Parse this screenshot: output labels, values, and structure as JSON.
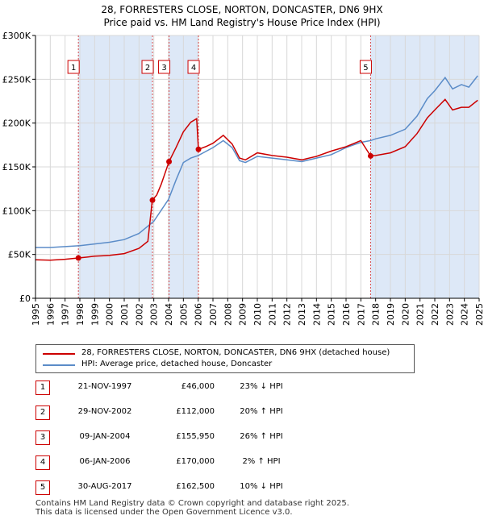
{
  "title_line1": "28, FORRESTERS CLOSE, NORTON, DONCASTER, DN6 9HX",
  "title_line2": "Price paid vs. HM Land Registry's House Price Index (HPI)",
  "colors": {
    "property": "#cc0000",
    "hpi": "#5b8cc8",
    "shade": "#dde8f7",
    "marker": "#cc0000"
  },
  "chart_data": {
    "type": "line",
    "title": "Price paid vs. HM Land Registry's House Price Index (HPI)",
    "xlabel": "",
    "ylabel": "",
    "xlim": [
      1995,
      2025
    ],
    "ylim": [
      0,
      300000
    ],
    "y_ticks": [
      0,
      50000,
      100000,
      150000,
      200000,
      250000,
      300000
    ],
    "y_tick_labels": [
      "£0",
      "£50K",
      "£100K",
      "£150K",
      "£200K",
      "£250K",
      "£300K"
    ],
    "x_ticks": [
      1995,
      1996,
      1997,
      1998,
      1999,
      2000,
      2001,
      2002,
      2003,
      2004,
      2005,
      2006,
      2007,
      2008,
      2009,
      2010,
      2011,
      2012,
      2013,
      2014,
      2015,
      2016,
      2017,
      2018,
      2019,
      2020,
      2021,
      2022,
      2023,
      2024,
      2025
    ],
    "grid": true,
    "legend_position": "below",
    "series": [
      {
        "name": "28, FORRESTERS CLOSE, NORTON, DONCASTER, DN6 9HX (detached house)",
        "points": [
          [
            1995.0,
            44000
          ],
          [
            1996.0,
            43500
          ],
          [
            1997.0,
            44500
          ],
          [
            1997.9,
            46000
          ],
          [
            1998.5,
            47000
          ],
          [
            1999.0,
            48000
          ],
          [
            2000.0,
            49000
          ],
          [
            2001.0,
            51000
          ],
          [
            2002.0,
            57000
          ],
          [
            2002.6,
            65000
          ],
          [
            2002.9,
            112000
          ],
          [
            2003.2,
            118000
          ],
          [
            2003.5,
            130000
          ],
          [
            2004.03,
            155950
          ],
          [
            2004.5,
            172000
          ],
          [
            2005.0,
            190000
          ],
          [
            2005.5,
            201000
          ],
          [
            2005.9,
            205000
          ],
          [
            2006.02,
            170000
          ],
          [
            2006.5,
            173000
          ],
          [
            2007.0,
            177000
          ],
          [
            2007.7,
            186000
          ],
          [
            2008.3,
            176000
          ],
          [
            2008.8,
            160000
          ],
          [
            2009.2,
            158000
          ],
          [
            2010.0,
            166000
          ],
          [
            2011.0,
            163000
          ],
          [
            2012.0,
            161000
          ],
          [
            2013.0,
            158000
          ],
          [
            2014.0,
            162000
          ],
          [
            2015.0,
            168000
          ],
          [
            2016.0,
            173000
          ],
          [
            2017.0,
            180000
          ],
          [
            2017.66,
            162500
          ],
          [
            2018.0,
            163000
          ],
          [
            2019.0,
            166000
          ],
          [
            2020.0,
            173000
          ],
          [
            2020.8,
            188000
          ],
          [
            2021.5,
            206000
          ],
          [
            2022.0,
            215000
          ],
          [
            2022.7,
            227000
          ],
          [
            2023.2,
            215000
          ],
          [
            2023.8,
            218000
          ],
          [
            2024.3,
            218000
          ],
          [
            2024.9,
            226000
          ]
        ]
      },
      {
        "name": "HPI: Average price, detached house, Doncaster",
        "points": [
          [
            1995.0,
            58000
          ],
          [
            1996.0,
            58000
          ],
          [
            1997.0,
            59000
          ],
          [
            1998.0,
            60000
          ],
          [
            1999.0,
            62000
          ],
          [
            2000.0,
            64000
          ],
          [
            2001.0,
            67000
          ],
          [
            2002.0,
            74000
          ],
          [
            2003.0,
            88000
          ],
          [
            2004.0,
            113000
          ],
          [
            2004.5,
            135000
          ],
          [
            2005.0,
            155000
          ],
          [
            2005.5,
            160000
          ],
          [
            2006.0,
            163000
          ],
          [
            2007.0,
            172000
          ],
          [
            2007.7,
            180000
          ],
          [
            2008.3,
            172000
          ],
          [
            2008.8,
            157000
          ],
          [
            2009.2,
            155000
          ],
          [
            2010.0,
            162000
          ],
          [
            2011.0,
            160000
          ],
          [
            2012.0,
            158000
          ],
          [
            2013.0,
            156000
          ],
          [
            2014.0,
            160000
          ],
          [
            2015.0,
            164000
          ],
          [
            2016.0,
            172000
          ],
          [
            2017.0,
            178000
          ],
          [
            2017.66,
            180000
          ],
          [
            2018.0,
            182000
          ],
          [
            2019.0,
            186000
          ],
          [
            2020.0,
            193000
          ],
          [
            2020.8,
            208000
          ],
          [
            2021.5,
            228000
          ],
          [
            2022.0,
            237000
          ],
          [
            2022.7,
            252000
          ],
          [
            2023.2,
            239000
          ],
          [
            2023.8,
            244000
          ],
          [
            2024.3,
            241000
          ],
          [
            2024.9,
            254000
          ]
        ]
      }
    ],
    "transactions": [
      {
        "id": "1",
        "x": 1997.9,
        "value": 46000
      },
      {
        "id": "2",
        "x": 2002.91,
        "value": 112000
      },
      {
        "id": "3",
        "x": 2004.03,
        "value": 155950
      },
      {
        "id": "4",
        "x": 2006.02,
        "value": 170000
      },
      {
        "id": "5",
        "x": 2017.66,
        "value": 162500
      }
    ],
    "shaded_ranges": [
      [
        1997.9,
        2002.91
      ],
      [
        2004.03,
        2006.02
      ],
      [
        2017.66,
        2025.0
      ]
    ]
  },
  "legend": {
    "property_label": "28, FORRESTERS CLOSE, NORTON, DONCASTER, DN6 9HX (detached house)",
    "hpi_label": "HPI: Average price, detached house, Doncaster"
  },
  "transactions_table": [
    {
      "num": "1",
      "date": "21-NOV-1997",
      "price": "£46,000",
      "hpi": "23% ↓ HPI"
    },
    {
      "num": "2",
      "date": "29-NOV-2002",
      "price": "£112,000",
      "hpi": "20% ↑ HPI"
    },
    {
      "num": "3",
      "date": "09-JAN-2004",
      "price": "£155,950",
      "hpi": "26% ↑ HPI"
    },
    {
      "num": "4",
      "date": "06-JAN-2006",
      "price": "£170,000",
      "hpi": "2% ↑ HPI"
    },
    {
      "num": "5",
      "date": "30-AUG-2017",
      "price": "£162,500",
      "hpi": "10% ↓ HPI"
    }
  ],
  "footer_line1": "Contains HM Land Registry data © Crown copyright and database right 2025.",
  "footer_line2": "This data is licensed under the Open Government Licence v3.0."
}
